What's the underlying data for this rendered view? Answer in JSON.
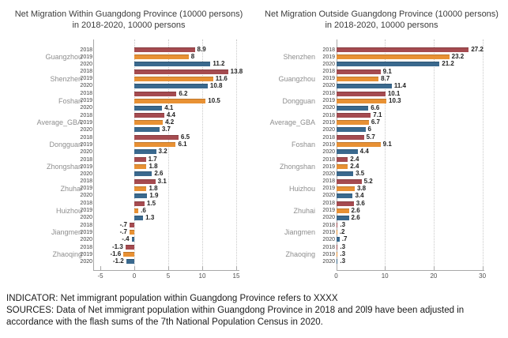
{
  "page": {
    "background": "#ffffff"
  },
  "colors": {
    "series_2018": "#a54b50",
    "series_2019": "#e89134",
    "series_2020": "#3a698e",
    "category_label": "#8e8e8e",
    "year_label": "#404040",
    "title_text": "#3c3c3c",
    "axis_line": "#a8a8a8",
    "gridline": "#c9c9c9",
    "value_label": "#1f1f1f"
  },
  "footnotes": {
    "indicator": "INDICATOR: Net immigrant population within Guangdong Province refers to XXXX",
    "sources": "SOURCES: Data of Net immigrant population within Guangdong Province in 2018 and 20l9 have been adjusted in accordance with the flash sums of the 7th National Population Census in 2020."
  },
  "chart_data": [
    {
      "type": "bar",
      "orientation": "horizontal",
      "title_lines": [
        "Net Migration Within Guangdong Province (10000 persons)",
        "in 2018-2020, 10000 persons"
      ],
      "title": "Net Migration Within Guangdong Province (10000 persons) in 2018-2020, 10000 persons",
      "categories": [
        "Guangzhou",
        "Shenzhen",
        "Foshan",
        "Average_GBA",
        "Dongguan",
        "Zhongshan",
        "Zhuhai",
        "Huizhou",
        "Jiangmen",
        "Zhaoqing"
      ],
      "series": [
        {
          "name": "2018",
          "color": "#a54b50",
          "values": [
            8.9,
            13.8,
            6.2,
            4.4,
            6.5,
            1.7,
            3.1,
            1.5,
            -0.7,
            -1.3
          ],
          "labels": [
            "8.9",
            "13.8",
            "6.2",
            "4.4",
            "6.5",
            "1.7",
            "3.1",
            "1.5",
            "-.7",
            "-1.3"
          ]
        },
        {
          "name": "2019",
          "color": "#e89134",
          "values": [
            8.0,
            11.6,
            10.5,
            4.2,
            6.1,
            1.8,
            1.8,
            0.6,
            -0.7,
            -1.6
          ],
          "labels": [
            "8",
            "11.6",
            "10.5",
            "4.2",
            "6.1",
            "1.8",
            "1.8",
            ".6",
            "-.7",
            "-1.6"
          ]
        },
        {
          "name": "2020",
          "color": "#3a698e",
          "values": [
            11.2,
            10.8,
            4.1,
            3.7,
            3.2,
            2.6,
            1.9,
            1.3,
            -0.4,
            -1.2
          ],
          "labels": [
            "11.2",
            "10.8",
            "4.1",
            "3.7",
            "3.2",
            "2.6",
            "1.9",
            "1.3",
            "-.4",
            "-1.2"
          ]
        }
      ],
      "xlim": [
        -6.05,
        15.35
      ],
      "xticks": [
        {
          "value": -5,
          "label": "-5"
        },
        {
          "value": 0,
          "label": "0"
        },
        {
          "value": 5,
          "label": "5"
        },
        {
          "value": 10,
          "label": "10"
        },
        {
          "value": 15,
          "label": "15"
        }
      ],
      "gridlines_at": [
        0,
        5,
        10,
        15
      ],
      "grid": true,
      "legend": "none"
    },
    {
      "type": "bar",
      "orientation": "horizontal",
      "title_lines": [
        "Net Migration Outside Guangdong Province (10000 persons)",
        "in 2018-2020, 10000 persons"
      ],
      "title": "Net Migration Outside Guangdong Province (10000 persons) in 2018-2020, 10000 persons",
      "categories": [
        "Shenzhen",
        "Guangzhou",
        "Dongguan",
        "Average_GBA",
        "Foshan",
        "Zhongshan",
        "Huizhou",
        "Zhuhai",
        "Jiangmen",
        "Zhaoqing"
      ],
      "series": [
        {
          "name": "2018",
          "color": "#a54b50",
          "values": [
            27.2,
            9.1,
            10.1,
            7.1,
            5.7,
            2.4,
            5.2,
            3.6,
            0.3,
            0.3
          ],
          "labels": [
            "27.2",
            "9.1",
            "10.1",
            "7.1",
            "5.7",
            "2.4",
            "5.2",
            "3.6",
            ".3",
            ".3"
          ]
        },
        {
          "name": "2019",
          "color": "#e89134",
          "values": [
            23.2,
            8.7,
            10.3,
            6.7,
            9.1,
            2.4,
            3.8,
            2.6,
            0.2,
            0.3
          ],
          "labels": [
            "23.2",
            "8.7",
            "10.3",
            "6.7",
            "9.1",
            "2.4",
            "3.8",
            "2.6",
            ".2",
            ".3"
          ]
        },
        {
          "name": "2020",
          "color": "#3a698e",
          "values": [
            21.2,
            11.4,
            6.6,
            6.0,
            4.4,
            3.5,
            3.4,
            2.6,
            0.7,
            0.3
          ],
          "labels": [
            "21.2",
            "11.4",
            "6.6",
            "6",
            "4.4",
            "3.5",
            "3.4",
            "2.6",
            ".7",
            ".3"
          ]
        }
      ],
      "xlim": [
        0,
        30.3
      ],
      "xticks": [
        {
          "value": 0,
          "label": "0"
        },
        {
          "value": 10,
          "label": "10"
        },
        {
          "value": 20,
          "label": "20"
        },
        {
          "value": 30,
          "label": "30"
        }
      ],
      "gridlines_at": [
        10,
        20,
        30
      ],
      "grid": true,
      "legend": "none"
    }
  ]
}
